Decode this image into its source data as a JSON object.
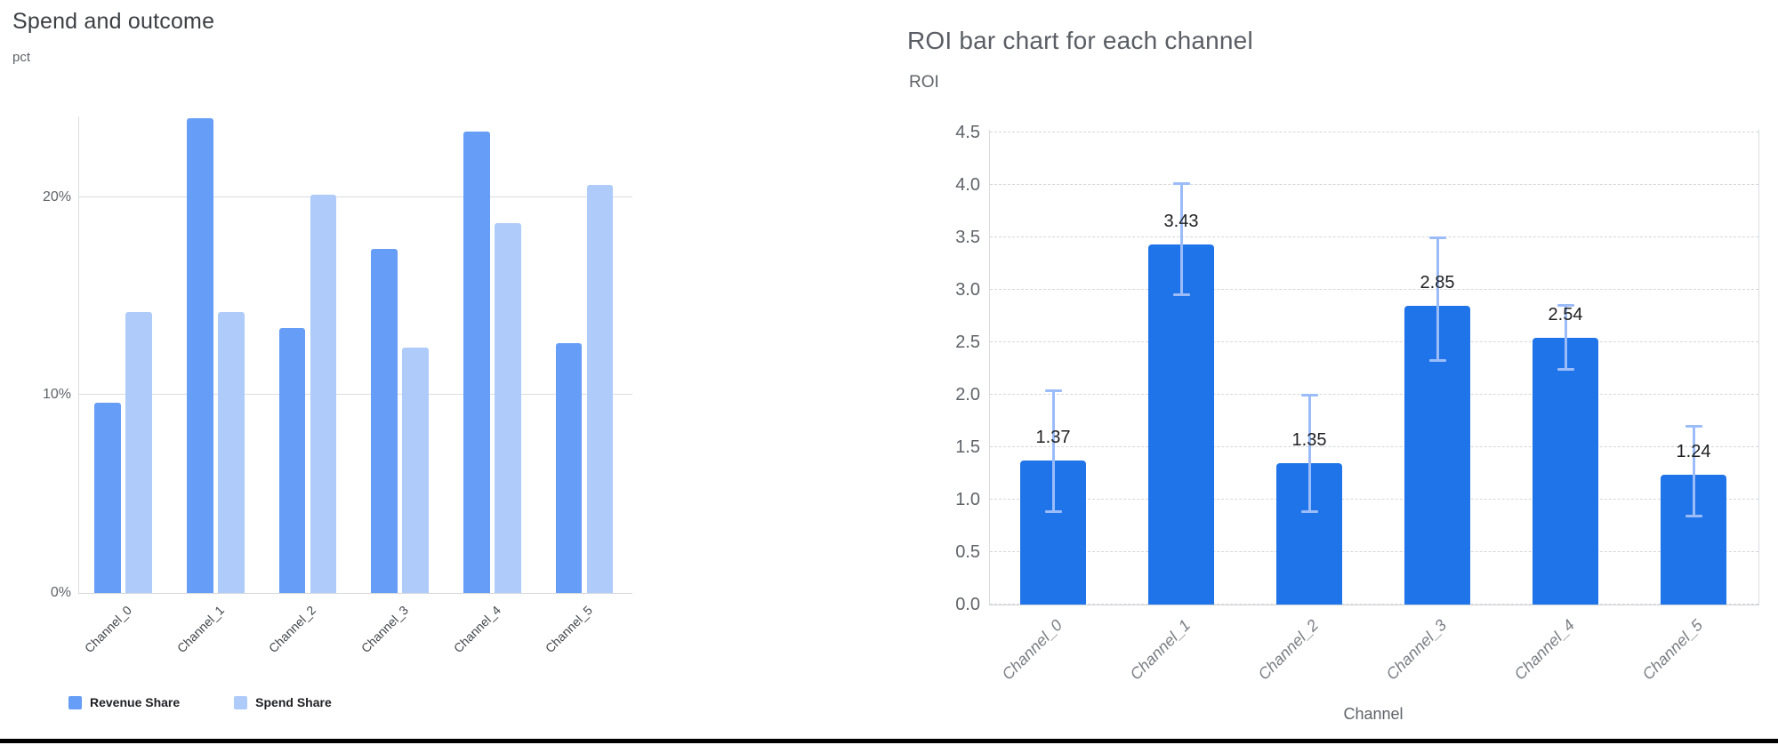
{
  "left_chart": {
    "title": "Spend and outcome",
    "unit_label": "pct",
    "legend": [
      {
        "label": "Revenue Share",
        "color": "#669DF6"
      },
      {
        "label": "Spend Share",
        "color": "#AECBFA"
      }
    ]
  },
  "right_chart": {
    "title": "ROI bar chart for each channel",
    "y_axis_label": "ROI",
    "x_axis_label": "Channel"
  },
  "chart_data": [
    {
      "type": "bar",
      "title": "Spend and outcome",
      "ylabel": "pct",
      "categories": [
        "Channel_0",
        "Channel_1",
        "Channel_2",
        "Channel_3",
        "Channel_4",
        "Channel_5"
      ],
      "series": [
        {
          "name": "Revenue Share",
          "color": "#669DF6",
          "values": [
            9.6,
            24.0,
            13.4,
            17.4,
            23.3,
            12.6
          ]
        },
        {
          "name": "Spend Share",
          "color": "#AECBFA",
          "values": [
            14.2,
            14.2,
            20.1,
            12.4,
            18.7,
            20.6
          ]
        }
      ],
      "value_unit": "%",
      "ylim": [
        0,
        24.07
      ],
      "y_ticks": [
        0,
        10,
        20
      ],
      "y_tick_labels": [
        "0%",
        "10%",
        "20%"
      ],
      "grid": "solid-horizontal",
      "legend_position": "bottom-left"
    },
    {
      "type": "bar",
      "title": "ROI bar chart for each channel",
      "ylabel": "ROI",
      "xlabel": "Channel",
      "categories": [
        "Channel_0",
        "Channel_1",
        "Channel_2",
        "Channel_3",
        "Channel_4",
        "Channel_5"
      ],
      "values": [
        1.37,
        3.43,
        1.35,
        2.85,
        2.54,
        1.24
      ],
      "value_labels": [
        "1.37",
        "3.43",
        "1.35",
        "2.85",
        "2.54",
        "1.24"
      ],
      "error_low": [
        0.88,
        2.95,
        0.88,
        2.32,
        2.24,
        0.84
      ],
      "error_high": [
        2.04,
        4.02,
        2.0,
        3.5,
        2.86,
        1.7
      ],
      "bar_color": "#1E74E8",
      "error_color": "#9BBCF9",
      "ylim": [
        0,
        4.5
      ],
      "y_ticks": [
        0.0,
        0.5,
        1.0,
        1.5,
        2.0,
        2.5,
        3.0,
        3.5,
        4.0,
        4.5
      ],
      "y_tick_labels": [
        "0.0",
        "0.5",
        "1.0",
        "1.5",
        "2.0",
        "2.5",
        "3.0",
        "3.5",
        "4.0",
        "4.5"
      ],
      "grid": "dashed-horizontal",
      "legend_position": "none"
    }
  ]
}
